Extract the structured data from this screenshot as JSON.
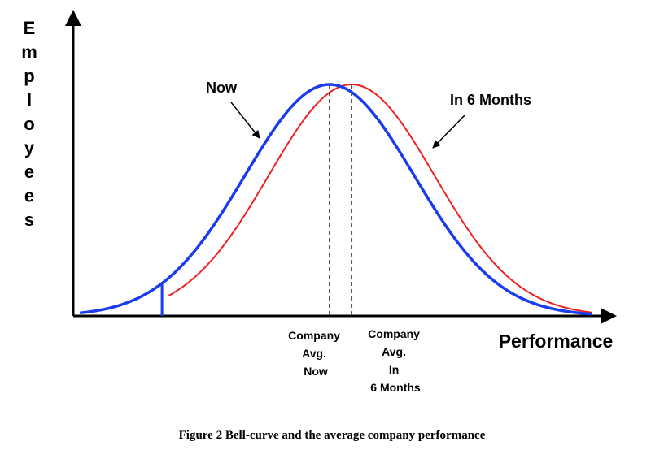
{
  "chart_data": {
    "type": "line",
    "xlabel": "Performance",
    "ylabel": "Employees",
    "series": [
      {
        "name": "Now",
        "color": "#1a3cf0",
        "mean": 0,
        "sd": 1
      },
      {
        "name": "In 6 Months",
        "color": "#f02020",
        "mean": 0.26,
        "sd": 0.98
      }
    ],
    "markers": [
      {
        "label_lines": [
          "Company",
          "Avg.",
          "Now"
        ]
      },
      {
        "label_lines": [
          "Company",
          "Avg.",
          "In",
          "6 Months"
        ]
      }
    ],
    "grid": false,
    "legend": "none"
  },
  "caption": "Figure 2 Bell-curve and the average company performance"
}
